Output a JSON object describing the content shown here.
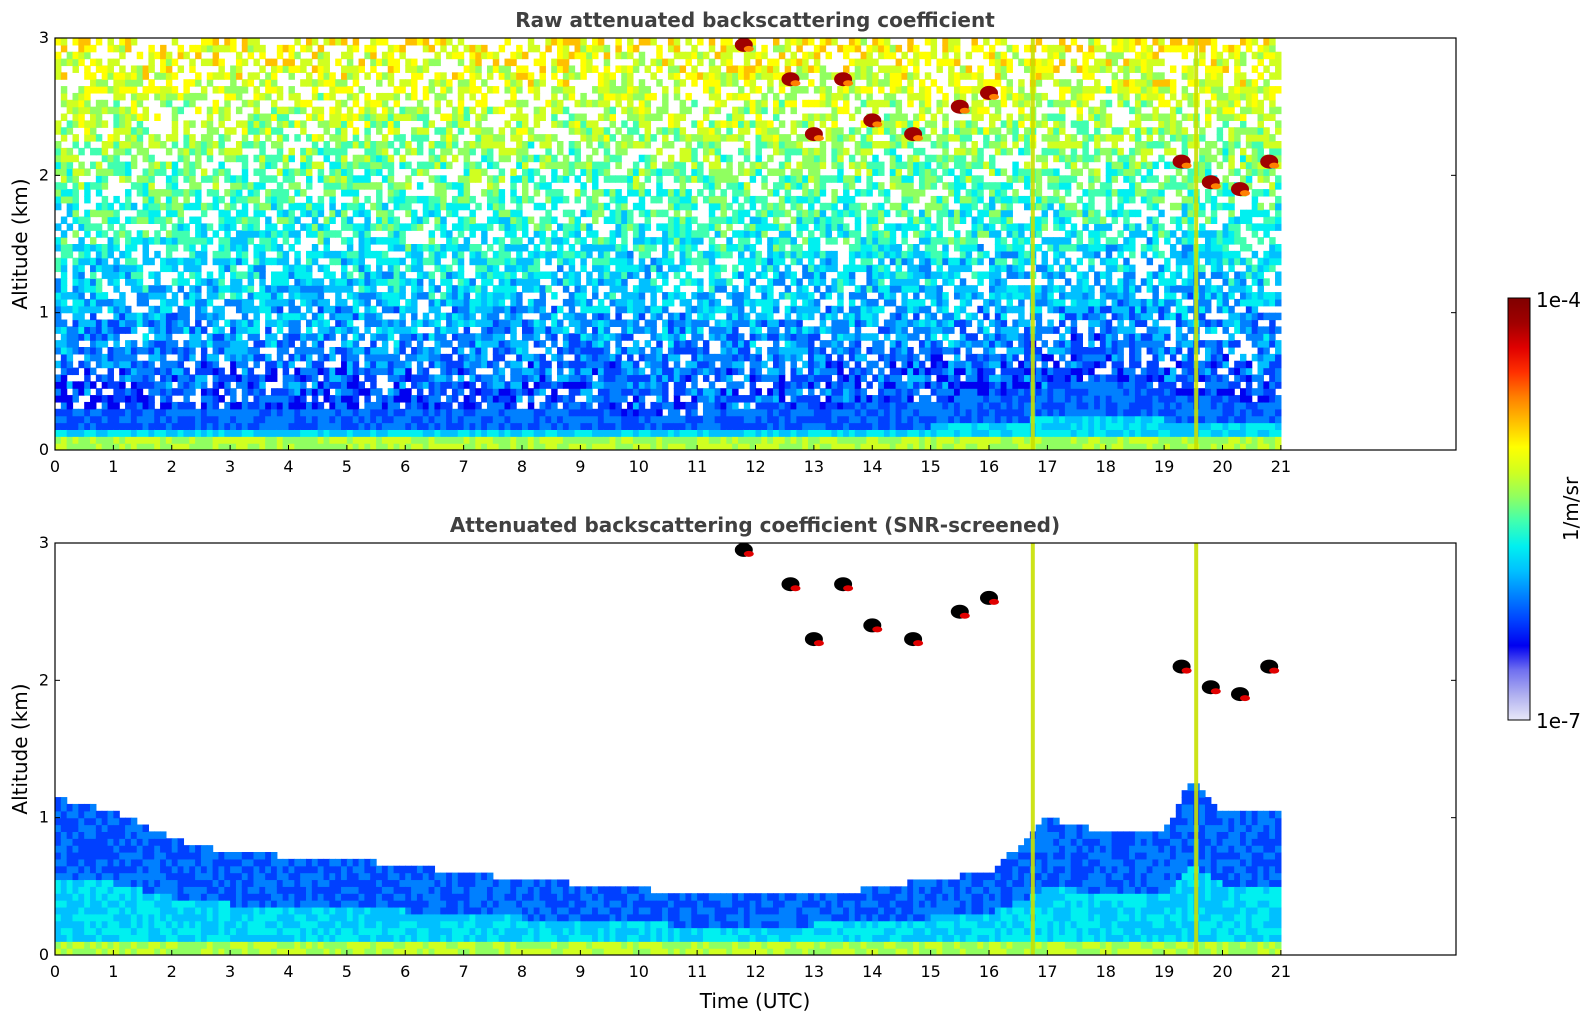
{
  "chart_data": [
    {
      "type": "heatmap",
      "title": "Raw attenuated backscattering coefficient",
      "xlabel": "",
      "ylabel": "Altitude (km)",
      "xlim": [
        0,
        24
      ],
      "ylim": [
        0,
        3
      ],
      "x_ticks": [
        "0",
        "1",
        "2",
        "3",
        "4",
        "5",
        "6",
        "7",
        "8",
        "9",
        "10",
        "11",
        "12",
        "13",
        "14",
        "15",
        "16",
        "17",
        "18",
        "19",
        "20",
        "21"
      ],
      "y_ticks": [
        "0",
        "1",
        "2",
        "3"
      ],
      "data_end_time": 21,
      "features": [
        {
          "kind": "surface_layer_top_km",
          "x": [
            0,
            3,
            6,
            9,
            10.5,
            12,
            15,
            16.7,
            18,
            19.5,
            21
          ],
          "y": [
            0.3,
            0.32,
            0.3,
            0.3,
            0.25,
            0.3,
            0.35,
            0.45,
            0.55,
            0.4,
            0.35
          ]
        },
        {
          "kind": "clouds",
          "points": [
            [
              11.8,
              2.95
            ],
            [
              12.6,
              2.7
            ],
            [
              13.0,
              2.3
            ],
            [
              13.5,
              2.7
            ],
            [
              14.0,
              2.4
            ],
            [
              14.7,
              2.3
            ],
            [
              15.5,
              2.5
            ],
            [
              16.0,
              2.6
            ],
            [
              19.3,
              2.1
            ],
            [
              19.8,
              1.95
            ],
            [
              20.3,
              1.9
            ],
            [
              20.8,
              2.1
            ]
          ]
        },
        {
          "kind": "vertical_stripes",
          "x": [
            16.75,
            19.55
          ]
        }
      ]
    },
    {
      "type": "heatmap",
      "title": "Attenuated backscattering coefficient (SNR-screened)",
      "xlabel": "Time (UTC)",
      "ylabel": "Altitude (km)",
      "xlim": [
        0,
        24
      ],
      "ylim": [
        0,
        3
      ],
      "x_ticks": [
        "0",
        "1",
        "2",
        "3",
        "4",
        "5",
        "6",
        "7",
        "8",
        "9",
        "10",
        "11",
        "12",
        "13",
        "14",
        "15",
        "16",
        "17",
        "18",
        "19",
        "20",
        "21"
      ],
      "y_ticks": [
        "0",
        "1",
        "2",
        "3"
      ],
      "data_end_time": 21,
      "features": [
        {
          "kind": "screened_layer_top_km",
          "x": [
            0,
            1,
            2,
            3,
            4,
            5,
            6,
            7,
            8,
            9,
            10,
            10.5,
            11,
            12,
            13,
            14,
            15,
            16,
            16.7,
            17,
            18,
            19,
            19.5,
            20,
            21
          ],
          "y": [
            1.15,
            1.05,
            0.85,
            0.75,
            0.72,
            0.7,
            0.65,
            0.6,
            0.55,
            0.52,
            0.5,
            0.45,
            0.45,
            0.45,
            0.45,
            0.48,
            0.55,
            0.6,
            0.85,
            1.0,
            0.9,
            0.9,
            1.3,
            1.05,
            1.05
          ]
        },
        {
          "kind": "clouds",
          "points": [
            [
              11.8,
              2.95
            ],
            [
              12.6,
              2.7
            ],
            [
              13.0,
              2.3
            ],
            [
              13.5,
              2.7
            ],
            [
              14.0,
              2.4
            ],
            [
              14.7,
              2.3
            ],
            [
              15.5,
              2.5
            ],
            [
              16.0,
              2.6
            ],
            [
              19.3,
              2.1
            ],
            [
              19.8,
              1.95
            ],
            [
              20.3,
              1.9
            ],
            [
              20.8,
              2.1
            ]
          ]
        },
        {
          "kind": "vertical_stripes",
          "x": [
            16.75,
            19.55
          ]
        }
      ]
    }
  ],
  "colorbar": {
    "label": "1/m/sr",
    "max_label": "1e-4",
    "min_label": "1e-7",
    "colors": [
      "#e8e8f8",
      "#b0b0f0",
      "#7070f0",
      "#0000f0",
      "#0040ff",
      "#0080ff",
      "#00c0ff",
      "#00f0f0",
      "#40ffb0",
      "#90ff60",
      "#d0ff20",
      "#ffff00",
      "#ffc000",
      "#ff8000",
      "#ff3000",
      "#e00000",
      "#a00000",
      "#800000"
    ]
  }
}
